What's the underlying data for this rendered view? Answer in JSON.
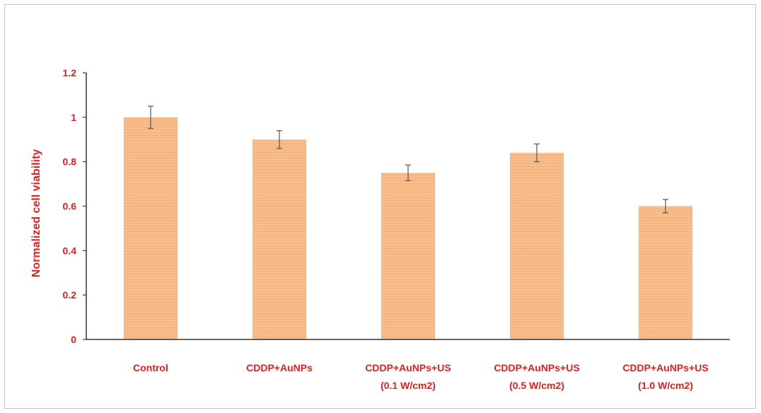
{
  "chart_data": {
    "type": "bar",
    "title": "",
    "xlabel": "",
    "ylabel": "Normalized cell viability",
    "ylim": [
      0,
      1.2
    ],
    "yticks": [
      "0",
      "0.2",
      "0.4",
      "0.6",
      "0.8",
      "1",
      "1.2"
    ],
    "categories": [
      [
        "Control"
      ],
      [
        "CDDP+AuNPs"
      ],
      [
        "CDDP+AuNPs+US",
        "(0.1 W/cm2)"
      ],
      [
        "CDDP+AuNPs+US",
        "(0.5 W/cm2)"
      ],
      [
        "CDDP+AuNPs+US",
        "(1.0 W/cm2)"
      ]
    ],
    "values": [
      1.0,
      0.9,
      0.75,
      0.84,
      0.6
    ],
    "errors": [
      0.05,
      0.04,
      0.035,
      0.04,
      0.03
    ],
    "grid": false,
    "colors": {
      "bar_fill": "#f7bd8c",
      "bar_stripe": "#f3ad76",
      "label": "#e02020",
      "axis": "#333333",
      "error_bar": "#555555"
    }
  }
}
